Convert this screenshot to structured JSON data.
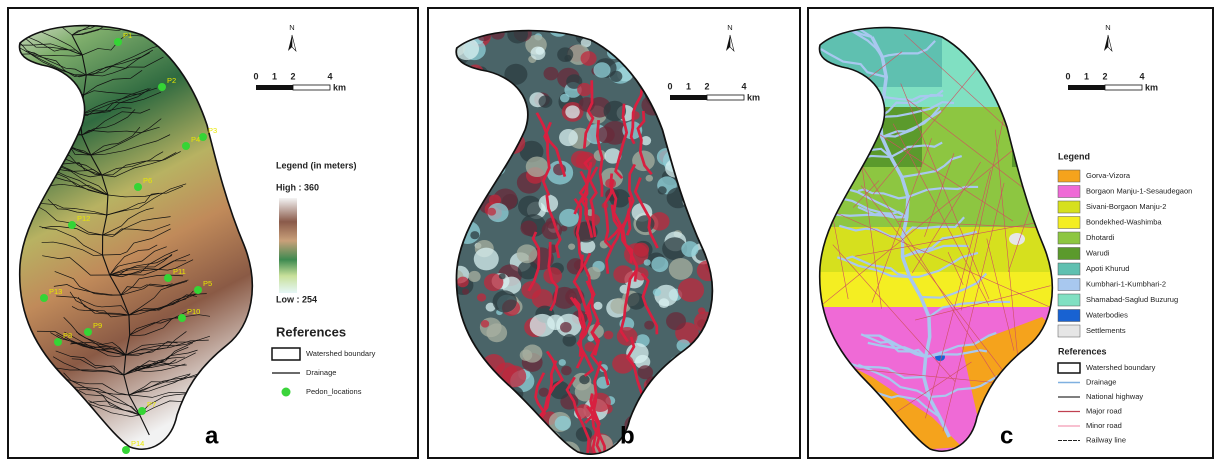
{
  "panels": [
    {
      "label": "a",
      "north": "N",
      "scale_ticks": [
        "0",
        "1",
        "2",
        "4"
      ],
      "scale_unit": "km",
      "legend_title": "Legend  (in meters)",
      "high": "High : 360",
      "low": "Low : 254",
      "references_title": "References",
      "references": [
        "Watershed boundary",
        "Drainage",
        "Pedon_locations"
      ],
      "pedons": [
        "P1",
        "P2",
        "P3",
        "P4",
        "P6",
        "P12",
        "P11",
        "P5",
        "P10",
        "P13",
        "P8",
        "P9",
        "P7",
        "P14"
      ]
    },
    {
      "label": "b",
      "north": "N",
      "scale_ticks": [
        "0",
        "1",
        "2",
        "4"
      ],
      "scale_unit": "km"
    },
    {
      "label": "c",
      "north": "N",
      "scale_ticks": [
        "0",
        "1",
        "2",
        "4"
      ],
      "scale_unit": "km",
      "legend_title": "Legend",
      "legend": [
        {
          "name": "Gorva-Vizora",
          "color": "#f5a31c"
        },
        {
          "name": "Borgaon Manju-1-Sesaudegaon",
          "color": "#ef6ad6"
        },
        {
          "name": "Sivani-Borgaon Manju-2",
          "color": "#d6e01e"
        },
        {
          "name": "Bondekhed-Washimba",
          "color": "#f4ee22"
        },
        {
          "name": "Dhotardi",
          "color": "#8dc641"
        },
        {
          "name": "Warudi",
          "color": "#5b9a2c"
        },
        {
          "name": "Apoti Khurud",
          "color": "#5fc0b0"
        },
        {
          "name": "Kumbhari-1-Kumbhari-2",
          "color": "#a8c8ef"
        },
        {
          "name": "Shamabad-Saglud Buzurug",
          "color": "#80e0c2"
        },
        {
          "name": "Waterbodies",
          "color": "#1862d2"
        },
        {
          "name": "Settlements",
          "color": "#e6e6e6"
        }
      ],
      "references_title": "References",
      "references": [
        "Watershed boundary",
        "Drainage",
        "National highway",
        "Major road",
        "Minor road",
        "Railway line"
      ]
    }
  ]
}
